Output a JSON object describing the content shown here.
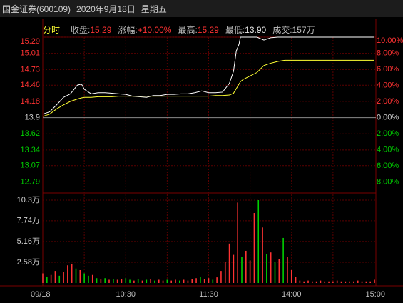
{
  "header": {
    "title": "国金证券(600109)",
    "date": "2020年9月18日",
    "weekday": "星期五"
  },
  "info": {
    "mode": "分时",
    "items": [
      {
        "label": "收盘:",
        "value": "15.29",
        "color": "#ff3232"
      },
      {
        "label": "涨幅:",
        "value": "+10.00%",
        "color": "#ff3232"
      },
      {
        "label": "最高:",
        "value": "15.29",
        "color": "#ff3232"
      },
      {
        "label": "最低:",
        "value": "13.90",
        "color": "#e6e6e6"
      },
      {
        "label": "成交:",
        "value": "157万",
        "color": "#bdbdbd"
      }
    ]
  },
  "chart_data": [
    {
      "type": "line",
      "x": [
        0,
        5,
        10,
        15,
        20,
        25,
        28,
        30,
        35,
        40,
        45,
        50,
        55,
        60,
        65,
        70,
        75,
        80,
        85,
        90,
        95,
        100,
        105,
        110,
        115,
        120,
        125,
        130,
        135,
        138,
        140,
        142,
        143,
        145,
        150,
        155,
        160,
        165,
        170,
        175,
        180,
        190,
        200,
        210,
        220,
        230,
        240
      ],
      "xlim": [
        0,
        240
      ],
      "xticks": [
        {
          "value": 0,
          "label": "09/18"
        },
        {
          "value": 60,
          "label": "10:30"
        },
        {
          "value": 120,
          "label": "11:30"
        },
        {
          "value": 180,
          "label": "14:00"
        },
        {
          "value": 240,
          "label": "15:00"
        }
      ],
      "x_minor_grid": [
        30,
        90,
        150,
        210
      ],
      "ylim": [
        12.66,
        15.29
      ],
      "yticks": [
        15.29,
        15.01,
        14.73,
        14.46,
        14.18,
        13.9,
        13.62,
        13.34,
        13.07,
        12.79
      ],
      "y2lim": [
        -8.92,
        10
      ],
      "y2ticks": [
        {
          "value": 10,
          "label": "10.00%"
        },
        {
          "value": 8,
          "label": "8.00%"
        },
        {
          "value": 6,
          "label": "6.00%"
        },
        {
          "value": 4,
          "label": "4.00%"
        },
        {
          "value": 2,
          "label": "2.00%"
        },
        {
          "value": 0,
          "label": "0.00%"
        },
        {
          "value": -2,
          "label": "2.00%"
        },
        {
          "value": -4,
          "label": "4.00%"
        },
        {
          "value": -6,
          "label": "6.00%"
        },
        {
          "value": -8,
          "label": "8.00%"
        }
      ],
      "grid": true,
      "series": [
        {
          "color": "#ffffff",
          "values": [
            13.96,
            14.0,
            14.12,
            14.25,
            14.31,
            14.46,
            14.48,
            14.39,
            14.31,
            14.33,
            14.33,
            14.32,
            14.31,
            14.3,
            14.27,
            14.26,
            14.25,
            14.28,
            14.28,
            14.3,
            14.3,
            14.31,
            14.31,
            14.33,
            14.36,
            14.33,
            14.33,
            14.34,
            14.49,
            14.7,
            15.05,
            15.17,
            15.29,
            15.29,
            15.29,
            15.29,
            15.24,
            15.28,
            15.29,
            15.29,
            15.29,
            15.29,
            15.29,
            15.29,
            15.29,
            15.29,
            15.29
          ]
        },
        {
          "color": "#ffff33",
          "values": [
            13.92,
            13.96,
            14.05,
            14.12,
            14.18,
            14.22,
            14.24,
            14.25,
            14.25,
            14.26,
            14.26,
            14.26,
            14.27,
            14.27,
            14.27,
            14.27,
            14.27,
            14.27,
            14.27,
            14.27,
            14.27,
            14.27,
            14.27,
            14.27,
            14.27,
            14.27,
            14.28,
            14.28,
            14.29,
            14.32,
            14.4,
            14.48,
            14.52,
            14.56,
            14.62,
            14.68,
            14.8,
            14.84,
            14.87,
            14.89,
            14.89,
            14.89,
            14.89,
            14.89,
            14.89,
            14.89,
            14.89
          ]
        }
      ]
    },
    {
      "type": "bar",
      "x": [
        0,
        3,
        6,
        9,
        12,
        15,
        18,
        21,
        24,
        27,
        30,
        33,
        36,
        39,
        42,
        45,
        48,
        51,
        54,
        57,
        60,
        63,
        66,
        69,
        72,
        75,
        78,
        81,
        84,
        87,
        90,
        93,
        96,
        99,
        102,
        105,
        108,
        111,
        114,
        117,
        120,
        123,
        126,
        129,
        132,
        135,
        138,
        141,
        144,
        147,
        150,
        153,
        156,
        159,
        162,
        165,
        168,
        171,
        174,
        177,
        180,
        183,
        186,
        189,
        192,
        195,
        198,
        201,
        204,
        207,
        210,
        213,
        216,
        219,
        222,
        225,
        228,
        231,
        234,
        237,
        240
      ],
      "values": [
        1.2,
        0.8,
        1.0,
        1.5,
        0.9,
        1.4,
        2.2,
        2.4,
        1.8,
        1.6,
        1.2,
        0.9,
        1.0,
        0.6,
        0.5,
        0.6,
        0.4,
        0.5,
        0.4,
        0.5,
        0.6,
        0.4,
        0.3,
        0.5,
        0.3,
        0.4,
        0.5,
        0.3,
        0.4,
        0.3,
        0.4,
        0.3,
        0.4,
        0.3,
        0.4,
        0.3,
        0.5,
        0.6,
        0.8,
        0.5,
        0.6,
        0.4,
        0.7,
        1.5,
        2.6,
        4.9,
        3.5,
        10.0,
        3.2,
        4.0,
        2.8,
        8.7,
        10.3,
        6.9,
        3.6,
        3.8,
        2.6,
        3.0,
        5.6,
        3.2,
        1.6,
        0.8,
        0.3,
        0.2,
        0.3,
        0.2,
        0.2,
        0.3,
        0.2,
        0.2,
        0.2,
        0.3,
        0.2,
        0.2,
        0.2,
        0.2,
        0.3,
        0.2,
        0.2,
        0.2,
        0.4
      ],
      "colors": [
        "#ff3232",
        "#00d000",
        "#ff3232",
        "#ff3232",
        "#00d000",
        "#ff3232",
        "#ff3232",
        "#ff3232",
        "#00d000",
        "#ff3232",
        "#00d000",
        "#00d000",
        "#ff3232",
        "#00d000",
        "#ff3232",
        "#00d000",
        "#ff3232",
        "#00d000",
        "#ff3232",
        "#ff3232",
        "#00d000",
        "#00d000",
        "#ff3232",
        "#00d000",
        "#ff3232",
        "#00d000",
        "#ff3232",
        "#00d000",
        "#ff3232",
        "#ff3232",
        "#00d000",
        "#ff3232",
        "#ff3232",
        "#00d000",
        "#ff3232",
        "#ff3232",
        "#ff3232",
        "#ff3232",
        "#00d000",
        "#ff3232",
        "#ff3232",
        "#00d000",
        "#ff3232",
        "#ff3232",
        "#ff3232",
        "#ff3232",
        "#ff3232",
        "#ff3232",
        "#00d000",
        "#ff3232",
        "#ff3232",
        "#ff3232",
        "#00d000",
        "#ff3232",
        "#00d000",
        "#ff3232",
        "#00d000",
        "#ff3232",
        "#00d000",
        "#ff3232",
        "#ff3232",
        "#ff3232",
        "#ff3232",
        "#ff3232",
        "#ff3232",
        "#ff3232",
        "#ff3232",
        "#ff3232",
        "#ff3232",
        "#ff3232",
        "#ff3232",
        "#ff3232",
        "#ff3232",
        "#ff3232",
        "#ff3232",
        "#ff3232",
        "#ff3232",
        "#ff3232",
        "#ff3232",
        "#ff3232",
        "#ff3232"
      ],
      "ylim": [
        0,
        10.3
      ],
      "yticks": [
        {
          "value": 10.3,
          "label": "10.3万"
        },
        {
          "value": 7.74,
          "label": "7.74万"
        },
        {
          "value": 5.16,
          "label": "5.16万"
        },
        {
          "value": 2.58,
          "label": "2.58万"
        }
      ],
      "grid": true
    }
  ]
}
